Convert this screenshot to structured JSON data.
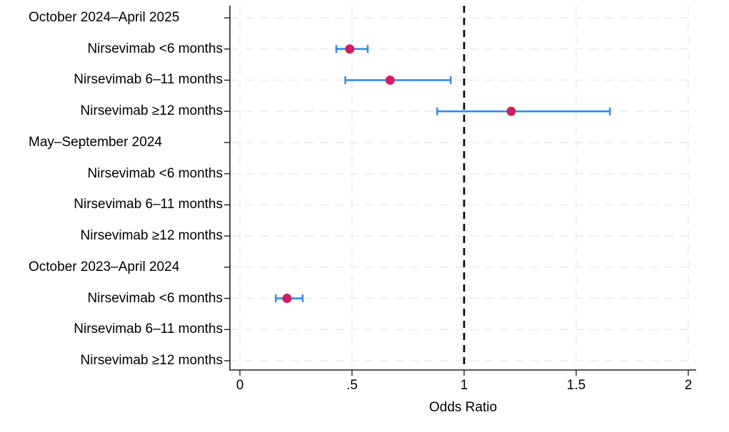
{
  "colors": {
    "background": "#ffffff",
    "point": "#ce1e5f",
    "ci_line": "#2f8ceb",
    "reference_line": "#000000",
    "gridline": "#ececec",
    "axis": "#1f1f1f",
    "text": "#000000"
  },
  "chart_data": {
    "type": "scatter",
    "subtype": "forest-plot",
    "title": "",
    "xlabel": "Odds Ratio",
    "ylabel": "",
    "xlim": [
      -0.045,
      2.035
    ],
    "x_tick_labels": [
      "0",
      ".5",
      "1",
      "1.5",
      "2"
    ],
    "x_tick_values": [
      0,
      0.5,
      1,
      1.5,
      2
    ],
    "reference_line_x": 1,
    "grid": "light gray dashed; vertical at each x tick, horizontal at each row",
    "legend_position": "none",
    "rows": [
      {
        "label": "October 2024–April 2025",
        "header": true,
        "or": null,
        "ci_low": null,
        "ci_high": null
      },
      {
        "label": "Nirsevimab <6 months",
        "header": false,
        "or": 0.49,
        "ci_low": 0.43,
        "ci_high": 0.57
      },
      {
        "label": "Nirsevimab 6–11 months",
        "header": false,
        "or": 0.67,
        "ci_low": 0.47,
        "ci_high": 0.94
      },
      {
        "label": "Nirsevimab ≥12 months",
        "header": false,
        "or": 1.21,
        "ci_low": 0.88,
        "ci_high": 1.65
      },
      {
        "label": "May–September 2024",
        "header": true,
        "or": null,
        "ci_low": null,
        "ci_high": null
      },
      {
        "label": "Nirsevimab <6 months",
        "header": false,
        "or": null,
        "ci_low": null,
        "ci_high": null
      },
      {
        "label": "Nirsevimab 6–11 months",
        "header": false,
        "or": null,
        "ci_low": null,
        "ci_high": null
      },
      {
        "label": "Nirsevimab ≥12 months",
        "header": false,
        "or": null,
        "ci_low": null,
        "ci_high": null
      },
      {
        "label": "October 2023–April 2024",
        "header": true,
        "or": null,
        "ci_low": null,
        "ci_high": null
      },
      {
        "label": "Nirsevimab <6 months",
        "header": false,
        "or": 0.21,
        "ci_low": 0.16,
        "ci_high": 0.28
      },
      {
        "label": "Nirsevimab 6–11 months",
        "header": false,
        "or": null,
        "ci_low": null,
        "ci_high": null
      },
      {
        "label": "Nirsevimab ≥12 months",
        "header": false,
        "or": null,
        "ci_low": null,
        "ci_high": null
      }
    ]
  }
}
